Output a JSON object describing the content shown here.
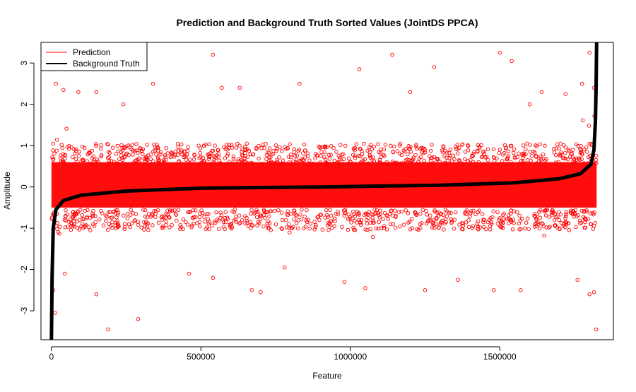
{
  "chart_data": {
    "type": "scatter",
    "title": "Prediction and Background Truth Sorted Values (JointDS PPCA)",
    "xlabel": "Feature",
    "ylabel": "Amplitude",
    "xlim": [
      -35000,
      1880000
    ],
    "ylim": [
      -3.7,
      3.5
    ],
    "x_ticks": [
      0,
      500000,
      1000000,
      1500000
    ],
    "x_tick_labels": [
      "0",
      "500000",
      "1000000",
      "1500000"
    ],
    "y_ticks": [
      -3,
      -2,
      -1,
      0,
      1,
      2,
      3
    ],
    "y_tick_labels": [
      "-3",
      "-2",
      "-1",
      "0",
      "1",
      "2",
      "3"
    ],
    "grid": false,
    "legend_position": "top-left",
    "n_features": 1824000,
    "series": [
      {
        "name": "Prediction",
        "kind": "points",
        "color": "#ff0000",
        "marker": "open-circle",
        "dense_band": [
          -0.5,
          0.6
        ],
        "outliers": [
          {
            "x": 8000,
            "y": 2.85
          },
          {
            "x": 15000,
            "y": 2.5
          },
          {
            "x": 40000,
            "y": 2.35
          },
          {
            "x": 90000,
            "y": 2.3
          },
          {
            "x": 150000,
            "y": 2.3
          },
          {
            "x": 240000,
            "y": 2.0
          },
          {
            "x": 340000,
            "y": 2.5
          },
          {
            "x": 540000,
            "y": 3.2
          },
          {
            "x": 570000,
            "y": 2.4
          },
          {
            "x": 630000,
            "y": 2.4
          },
          {
            "x": 830000,
            "y": 2.5
          },
          {
            "x": 1030000,
            "y": 2.85
          },
          {
            "x": 1140000,
            "y": 3.2
          },
          {
            "x": 1200000,
            "y": 2.3
          },
          {
            "x": 1280000,
            "y": 2.9
          },
          {
            "x": 1500000,
            "y": 3.25
          },
          {
            "x": 1540000,
            "y": 3.05
          },
          {
            "x": 1600000,
            "y": 2.0
          },
          {
            "x": 1640000,
            "y": 2.3
          },
          {
            "x": 1720000,
            "y": 2.25
          },
          {
            "x": 1775000,
            "y": 2.5
          },
          {
            "x": 1800000,
            "y": 3.25
          },
          {
            "x": 1815000,
            "y": 2.4
          },
          {
            "x": 6000,
            "y": -2.5
          },
          {
            "x": 12000,
            "y": -3.05
          },
          {
            "x": 45000,
            "y": -2.1
          },
          {
            "x": 150000,
            "y": -2.6
          },
          {
            "x": 190000,
            "y": -3.45
          },
          {
            "x": 290000,
            "y": -3.2
          },
          {
            "x": 460000,
            "y": -2.1
          },
          {
            "x": 540000,
            "y": -2.2
          },
          {
            "x": 670000,
            "y": -2.5
          },
          {
            "x": 700000,
            "y": -2.55
          },
          {
            "x": 780000,
            "y": -1.95
          },
          {
            "x": 980000,
            "y": -2.3
          },
          {
            "x": 1050000,
            "y": -2.45
          },
          {
            "x": 1250000,
            "y": -2.5
          },
          {
            "x": 1360000,
            "y": -2.25
          },
          {
            "x": 1480000,
            "y": -2.5
          },
          {
            "x": 1570000,
            "y": -2.5
          },
          {
            "x": 1760000,
            "y": -2.25
          },
          {
            "x": 1800000,
            "y": -2.6
          },
          {
            "x": 1815000,
            "y": -2.55
          },
          {
            "x": 1822000,
            "y": -3.45
          }
        ]
      },
      {
        "name": "Background Truth",
        "kind": "line",
        "color": "#000000",
        "points": [
          {
            "x": 0,
            "y": -3.7
          },
          {
            "x": 2000,
            "y": -2.2
          },
          {
            "x": 6000,
            "y": -1.0
          },
          {
            "x": 15000,
            "y": -0.55
          },
          {
            "x": 40000,
            "y": -0.33
          },
          {
            "x": 100000,
            "y": -0.2
          },
          {
            "x": 250000,
            "y": -0.1
          },
          {
            "x": 500000,
            "y": -0.03
          },
          {
            "x": 900000,
            "y": 0.0
          },
          {
            "x": 1300000,
            "y": 0.04
          },
          {
            "x": 1550000,
            "y": 0.1
          },
          {
            "x": 1700000,
            "y": 0.2
          },
          {
            "x": 1770000,
            "y": 0.32
          },
          {
            "x": 1805000,
            "y": 0.55
          },
          {
            "x": 1815000,
            "y": 0.9
          },
          {
            "x": 1820000,
            "y": 1.6
          },
          {
            "x": 1822000,
            "y": 2.4
          },
          {
            "x": 1824000,
            "y": 3.5
          }
        ]
      }
    ]
  }
}
